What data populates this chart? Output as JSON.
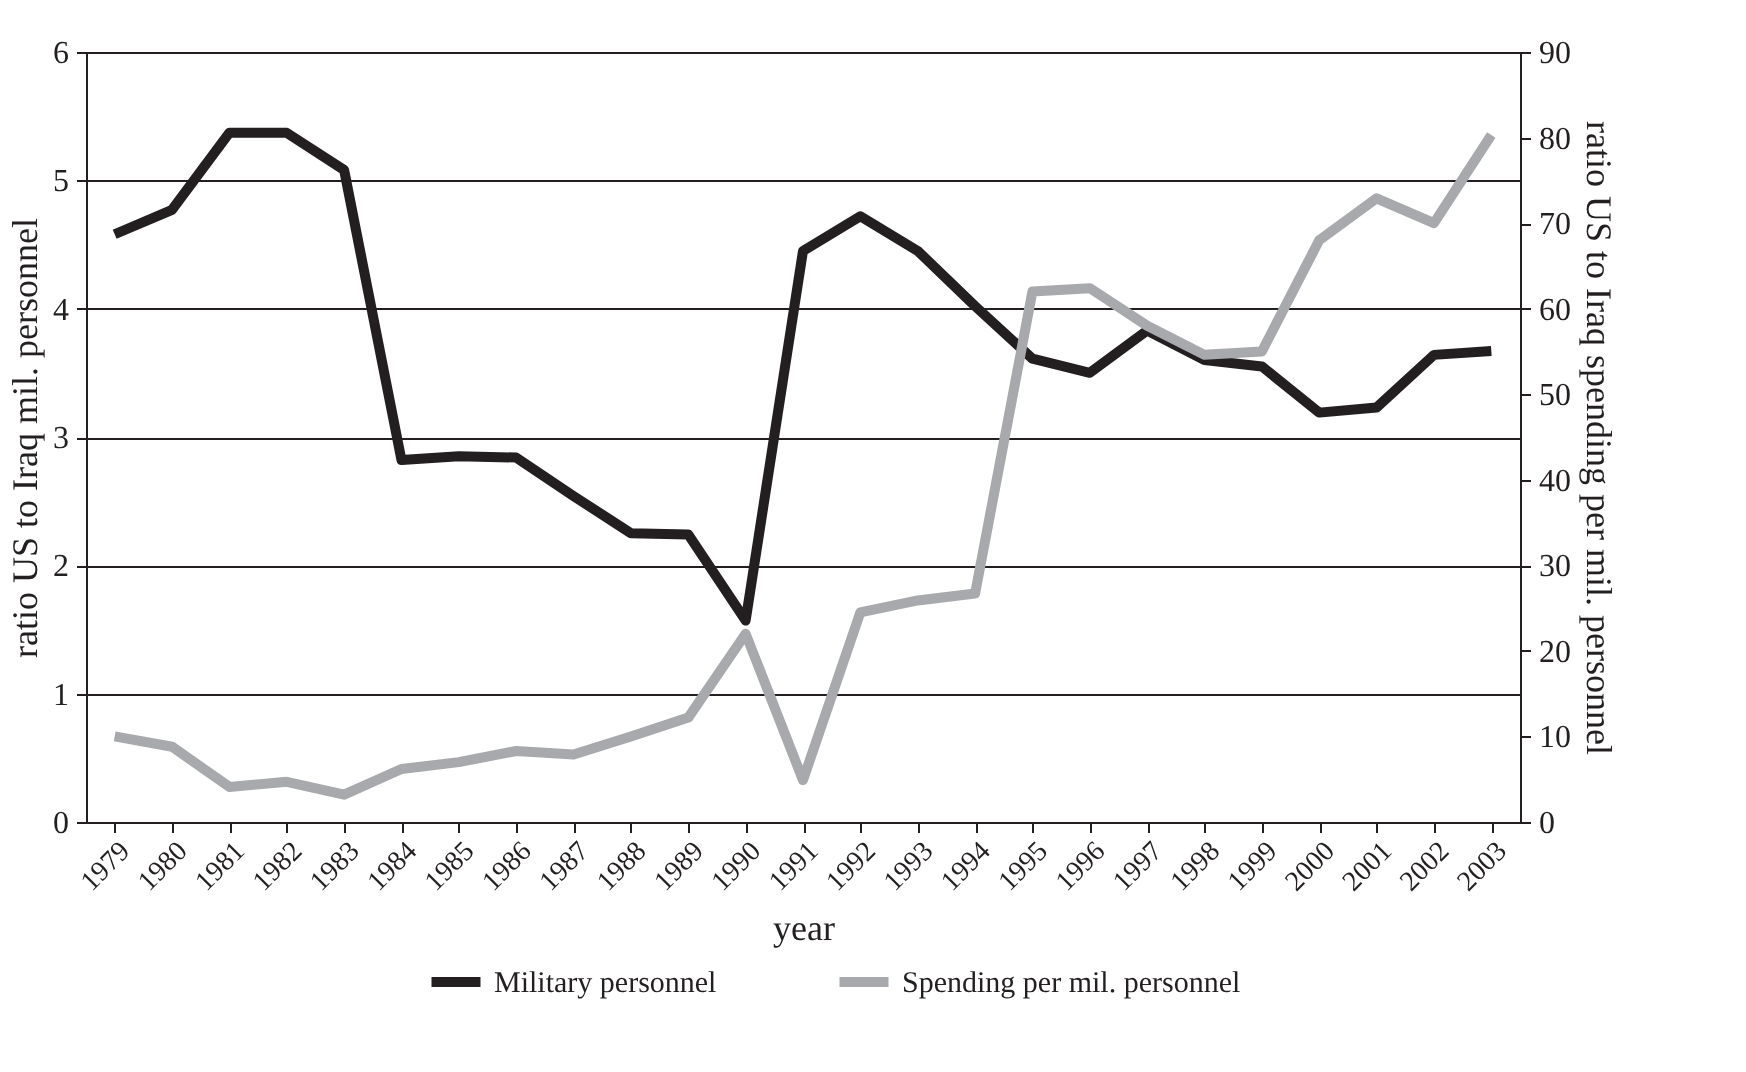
{
  "chart_data": {
    "type": "line",
    "xlabel": "year",
    "ylabel": "ratio US to Iraq mil. personnel",
    "y2label": "ratio US to Iraq spending per mil. personnel",
    "categories": [
      "1979",
      "1980",
      "1981",
      "1982",
      "1983",
      "1984",
      "1985",
      "1986",
      "1987",
      "1988",
      "1989",
      "1990",
      "1991",
      "1992",
      "1993",
      "1994",
      "1995",
      "1996",
      "1997",
      "1998",
      "1999",
      "2000",
      "2001",
      "2002",
      "2003"
    ],
    "series": [
      {
        "name": "Military personnel",
        "color": "#231f20",
        "values": [
          4.58,
          4.77,
          5.37,
          5.37,
          5.08,
          2.82,
          2.85,
          2.84,
          2.54,
          2.25,
          2.24,
          1.57,
          4.45,
          4.72,
          4.45,
          4.02,
          3.61,
          3.5,
          3.83,
          3.6,
          3.55,
          3.19,
          3.23,
          3.64,
          3.67
        ]
      },
      {
        "name": "Spending per mil. personnel",
        "color": "#a7a9ac",
        "axis": "y2",
        "values": [
          10,
          8.8,
          4.1,
          4.7,
          3.2,
          6.2,
          7,
          8.3,
          7.9,
          10,
          12.2,
          22,
          4.9,
          24.5,
          25.9,
          26.7,
          62,
          62.4,
          58,
          54.6,
          55,
          68,
          72.9,
          70,
          80.3
        ]
      }
    ],
    "ylim": [
      0,
      6
    ],
    "yticks": [
      0,
      1,
      2,
      3,
      4,
      5,
      6
    ],
    "y2lim": [
      0,
      90
    ],
    "y2ticks": [
      0,
      10,
      20,
      30,
      40,
      50,
      60,
      70,
      80,
      90
    ],
    "grid": "y",
    "legend": "bottom",
    "line_style": "solid",
    "marker": "none"
  }
}
